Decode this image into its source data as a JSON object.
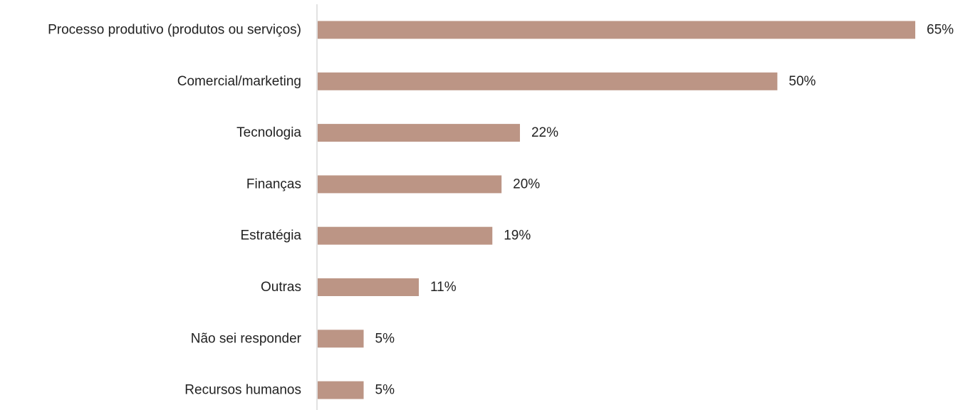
{
  "chart_data": {
    "type": "bar",
    "orientation": "horizontal",
    "categories": [
      "Processo produtivo (produtos ou serviços)",
      "Comercial/marketing",
      "Tecnologia",
      "Finanças",
      "Estratégia",
      "Outras",
      "Não sei responder",
      "Recursos humanos"
    ],
    "values": [
      65,
      50,
      22,
      20,
      19,
      11,
      5,
      5
    ],
    "value_labels": [
      "65%",
      "50%",
      "22%",
      "20%",
      "19%",
      "11%",
      "5%",
      "5%"
    ],
    "unit": "%",
    "xlim": [
      0,
      65
    ],
    "grid": false,
    "legend": "none",
    "colors": {
      "bar": "#bc9585",
      "axis": "#d9d9d9",
      "text": "#222222"
    }
  }
}
